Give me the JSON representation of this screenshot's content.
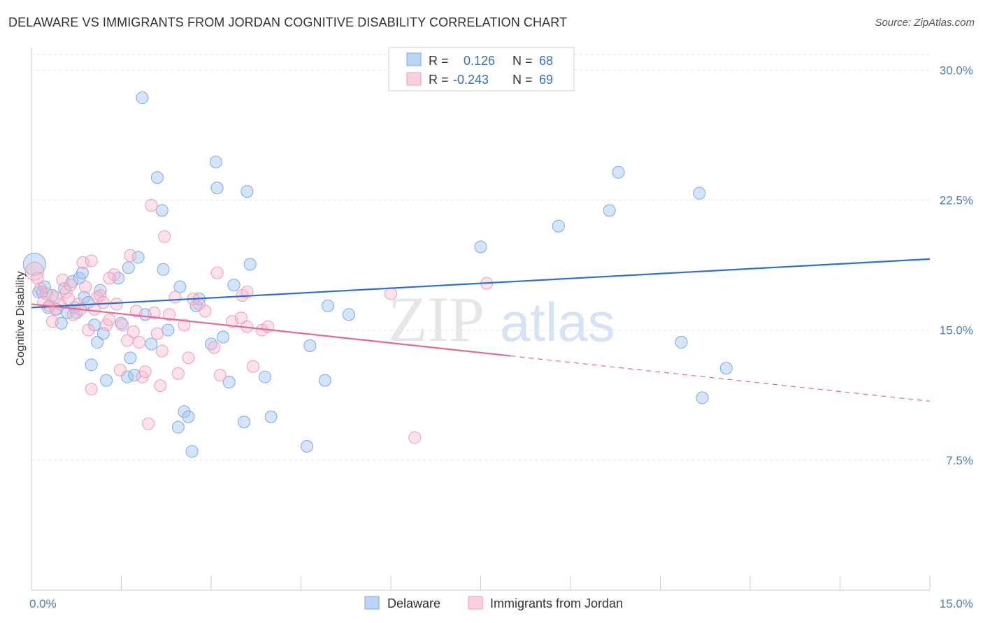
{
  "title": "DELAWARE VS IMMIGRANTS FROM JORDAN COGNITIVE DISABILITY CORRELATION CHART",
  "source": "Source: ZipAtlas.com",
  "watermark": {
    "zip": "ZIP",
    "atlas": "atlas"
  },
  "chart_data": {
    "type": "scatter",
    "title": "DELAWARE VS IMMIGRANTS FROM JORDAN COGNITIVE DISABILITY CORRELATION CHART",
    "xlabel": "",
    "ylabel": "Cognitive Disability",
    "xlim": [
      0,
      15
    ],
    "ylim": [
      0,
      30.9
    ],
    "x_tick_labels": [
      "0.0%",
      "15.0%"
    ],
    "y_ticks": [
      7.5,
      15.0,
      22.5,
      30.0
    ],
    "y_tick_labels": [
      "7.5%",
      "15.0%",
      "22.5%",
      "30.0%"
    ],
    "grid": true,
    "legend_position": "top-center",
    "series": [
      {
        "name": "Delaware",
        "color": "#7aaae8",
        "stats": {
          "r_label": "R =",
          "r": "0.126",
          "n_label": "N =",
          "n": "68"
        },
        "trend": {
          "x0": 0,
          "y0": 16.3,
          "x1": 15,
          "y1": 19.1,
          "dashed_from": null
        },
        "points": [
          [
            0.05,
            18.8
          ],
          [
            0.12,
            17.2
          ],
          [
            0.18,
            17.2
          ],
          [
            0.22,
            17.5
          ],
          [
            0.28,
            16.3
          ],
          [
            0.35,
            17.0
          ],
          [
            0.42,
            16.2
          ],
          [
            0.5,
            15.4
          ],
          [
            0.55,
            17.4
          ],
          [
            0.6,
            16.0
          ],
          [
            0.68,
            17.8
          ],
          [
            0.72,
            16.3
          ],
          [
            0.75,
            16.0
          ],
          [
            0.8,
            18.0
          ],
          [
            0.85,
            18.3
          ],
          [
            0.88,
            16.9
          ],
          [
            0.95,
            16.6
          ],
          [
            1.0,
            13.0
          ],
          [
            1.05,
            15.3
          ],
          [
            1.1,
            14.3
          ],
          [
            1.15,
            17.3
          ],
          [
            1.2,
            14.8
          ],
          [
            1.25,
            12.1
          ],
          [
            1.45,
            18.0
          ],
          [
            1.5,
            15.4
          ],
          [
            1.6,
            12.3
          ],
          [
            1.62,
            18.6
          ],
          [
            1.65,
            13.4
          ],
          [
            1.72,
            12.4
          ],
          [
            1.78,
            19.2
          ],
          [
            1.85,
            28.4
          ],
          [
            1.9,
            15.9
          ],
          [
            2.0,
            14.2
          ],
          [
            2.1,
            23.8
          ],
          [
            2.18,
            21.9
          ],
          [
            2.2,
            18.5
          ],
          [
            2.28,
            15.0
          ],
          [
            2.45,
            9.4
          ],
          [
            2.48,
            17.5
          ],
          [
            2.55,
            10.3
          ],
          [
            2.62,
            10.0
          ],
          [
            2.68,
            8.0
          ],
          [
            2.75,
            16.4
          ],
          [
            2.8,
            16.8
          ],
          [
            3.0,
            14.2
          ],
          [
            3.08,
            24.7
          ],
          [
            3.1,
            23.2
          ],
          [
            3.2,
            14.6
          ],
          [
            3.38,
            17.6
          ],
          [
            3.55,
            9.7
          ],
          [
            3.6,
            23.0
          ],
          [
            3.65,
            18.8
          ],
          [
            3.9,
            12.3
          ],
          [
            4.6,
            8.3
          ],
          [
            4.65,
            14.1
          ],
          [
            4.9,
            12.1
          ],
          [
            4.95,
            16.4
          ],
          [
            5.3,
            15.9
          ],
          [
            7.5,
            19.8
          ],
          [
            8.8,
            21.0
          ],
          [
            9.65,
            21.9
          ],
          [
            9.8,
            24.1
          ],
          [
            10.85,
            14.3
          ],
          [
            11.2,
            11.1
          ],
          [
            11.15,
            22.9
          ],
          [
            11.6,
            12.8
          ],
          [
            4.0,
            10.0
          ],
          [
            3.3,
            12.0
          ]
        ]
      },
      {
        "name": "Immigrants from Jordan",
        "color": "#f29ab8",
        "stats": {
          "r_label": "R =",
          "r": "-0.243",
          "n_label": "N =",
          "n": "69"
        },
        "trend": {
          "x0": 0,
          "y0": 16.5,
          "x1": 15,
          "y1": 10.9,
          "dashed_from": 8.0
        },
        "points": [
          [
            0.05,
            18.4
          ],
          [
            0.1,
            18.0
          ],
          [
            0.15,
            17.4
          ],
          [
            0.2,
            16.6
          ],
          [
            0.25,
            17.1
          ],
          [
            0.3,
            16.4
          ],
          [
            0.35,
            15.5
          ],
          [
            0.4,
            16.2
          ],
          [
            0.48,
            16.5
          ],
          [
            0.52,
            17.9
          ],
          [
            0.58,
            17.2
          ],
          [
            0.62,
            16.8
          ],
          [
            0.65,
            17.6
          ],
          [
            0.7,
            15.9
          ],
          [
            0.78,
            16.5
          ],
          [
            0.82,
            16.2
          ],
          [
            0.86,
            18.9
          ],
          [
            0.9,
            17.5
          ],
          [
            0.95,
            15.0
          ],
          [
            1.0,
            11.6
          ],
          [
            1.05,
            16.2
          ],
          [
            1.1,
            16.9
          ],
          [
            1.15,
            17.0
          ],
          [
            1.2,
            16.6
          ],
          [
            1.25,
            15.3
          ],
          [
            1.3,
            15.6
          ],
          [
            1.38,
            18.2
          ],
          [
            1.42,
            16.5
          ],
          [
            1.48,
            12.7
          ],
          [
            1.52,
            15.3
          ],
          [
            1.6,
            14.4
          ],
          [
            1.65,
            19.3
          ],
          [
            1.7,
            14.9
          ],
          [
            1.75,
            16.1
          ],
          [
            1.8,
            14.3
          ],
          [
            1.85,
            12.3
          ],
          [
            1.9,
            12.6
          ],
          [
            1.95,
            9.6
          ],
          [
            2.0,
            22.2
          ],
          [
            2.05,
            16.0
          ],
          [
            2.1,
            14.8
          ],
          [
            2.15,
            11.8
          ],
          [
            2.18,
            13.8
          ],
          [
            2.22,
            20.4
          ],
          [
            2.3,
            15.9
          ],
          [
            2.45,
            12.5
          ],
          [
            2.55,
            15.3
          ],
          [
            2.62,
            13.4
          ],
          [
            2.7,
            16.8
          ],
          [
            2.8,
            16.5
          ],
          [
            2.9,
            16.1
          ],
          [
            3.05,
            14.0
          ],
          [
            3.1,
            18.3
          ],
          [
            3.15,
            12.4
          ],
          [
            3.35,
            15.5
          ],
          [
            3.5,
            15.7
          ],
          [
            3.52,
            17.0
          ],
          [
            3.6,
            17.2
          ],
          [
            3.7,
            12.9
          ],
          [
            3.85,
            15.0
          ],
          [
            3.95,
            15.2
          ],
          [
            6.0,
            17.1
          ],
          [
            6.4,
            8.8
          ],
          [
            7.6,
            17.7
          ],
          [
            1.3,
            18.0
          ],
          [
            0.4,
            16.9
          ],
          [
            2.4,
            16.9
          ],
          [
            3.6,
            15.2
          ],
          [
            1.0,
            19.0
          ]
        ]
      }
    ]
  }
}
